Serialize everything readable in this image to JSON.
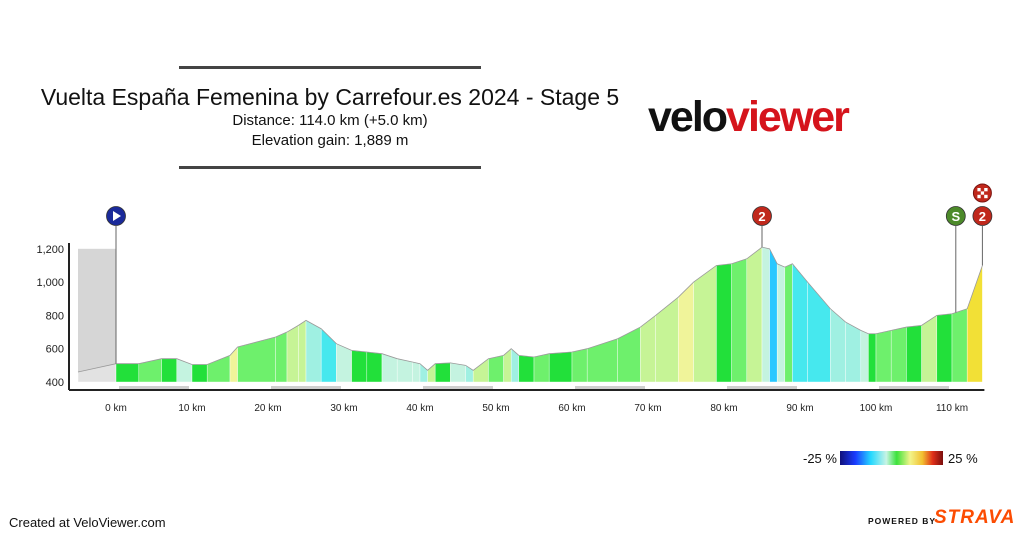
{
  "header": {
    "title": "Vuelta España Femenina by Carrefour.es 2024 - Stage 5",
    "distance": "Distance: 114.0 km (+5.0 km)",
    "elevation": "Elevation gain: 1,889 m"
  },
  "logo": {
    "part1": "velo",
    "part2": "viewer"
  },
  "legend": {
    "min_label": "-25 %",
    "max_label": "25 %"
  },
  "footer": {
    "credit": "Created at VeloViewer.com",
    "powered": "POWERED BY",
    "brand": "STRAVA"
  },
  "colors": {
    "brand_red": "#d5141c",
    "strava_orange": "#fc4c02",
    "start_marker": "#1a2a9a",
    "climb_marker": "#c0281c",
    "sprint_marker": "#4c8a2a"
  },
  "chart_data": {
    "type": "area",
    "title": "",
    "xlabel": "",
    "ylabel": "",
    "xlim": [
      -5,
      114
    ],
    "ylim": [
      400,
      1200
    ],
    "x_ticks": [
      0,
      10,
      20,
      30,
      40,
      50,
      60,
      70,
      80,
      90,
      100,
      110
    ],
    "x_tick_labels": [
      "0 km",
      "10 km",
      "20 km",
      "30 km",
      "40 km",
      "50 km",
      "60 km",
      "70 km",
      "80 km",
      "90 km",
      "100 km",
      "110 km"
    ],
    "y_ticks": [
      400,
      600,
      800,
      1000,
      1200
    ],
    "y_tick_labels": [
      "400",
      "600",
      "800",
      "1,000",
      "1,200"
    ],
    "neutral_zone_km": [
      -5,
      0
    ],
    "color_scale": {
      "min_pct": -25,
      "max_pct": 25
    },
    "profile": [
      {
        "x": -5,
        "y": 460
      },
      {
        "x": 0,
        "y": 510
      },
      {
        "x": 3,
        "y": 510
      },
      {
        "x": 6,
        "y": 540
      },
      {
        "x": 8,
        "y": 540
      },
      {
        "x": 10,
        "y": 505
      },
      {
        "x": 12,
        "y": 505
      },
      {
        "x": 15,
        "y": 560
      },
      {
        "x": 16,
        "y": 610
      },
      {
        "x": 21,
        "y": 670
      },
      {
        "x": 22.5,
        "y": 700
      },
      {
        "x": 24,
        "y": 740
      },
      {
        "x": 25,
        "y": 770
      },
      {
        "x": 27,
        "y": 720
      },
      {
        "x": 29,
        "y": 630
      },
      {
        "x": 31,
        "y": 590
      },
      {
        "x": 33,
        "y": 580
      },
      {
        "x": 35,
        "y": 570
      },
      {
        "x": 37,
        "y": 540
      },
      {
        "x": 39,
        "y": 520
      },
      {
        "x": 40,
        "y": 510
      },
      {
        "x": 41,
        "y": 470
      },
      {
        "x": 42,
        "y": 510
      },
      {
        "x": 44,
        "y": 515
      },
      {
        "x": 46,
        "y": 500
      },
      {
        "x": 47,
        "y": 470
      },
      {
        "x": 49,
        "y": 540
      },
      {
        "x": 51,
        "y": 560
      },
      {
        "x": 52,
        "y": 600
      },
      {
        "x": 53,
        "y": 560
      },
      {
        "x": 55,
        "y": 550
      },
      {
        "x": 57,
        "y": 570
      },
      {
        "x": 60,
        "y": 580
      },
      {
        "x": 62,
        "y": 600
      },
      {
        "x": 66,
        "y": 660
      },
      {
        "x": 69,
        "y": 730
      },
      {
        "x": 71,
        "y": 800
      },
      {
        "x": 74,
        "y": 910
      },
      {
        "x": 76,
        "y": 1000
      },
      {
        "x": 79,
        "y": 1100
      },
      {
        "x": 81,
        "y": 1110
      },
      {
        "x": 83,
        "y": 1140
      },
      {
        "x": 85,
        "y": 1210
      },
      {
        "x": 86,
        "y": 1200
      },
      {
        "x": 87,
        "y": 1110
      },
      {
        "x": 88,
        "y": 1090
      },
      {
        "x": 89,
        "y": 1110
      },
      {
        "x": 91,
        "y": 1000
      },
      {
        "x": 94,
        "y": 840
      },
      {
        "x": 96,
        "y": 760
      },
      {
        "x": 98,
        "y": 710
      },
      {
        "x": 99,
        "y": 690
      },
      {
        "x": 100,
        "y": 690
      },
      {
        "x": 102,
        "y": 710
      },
      {
        "x": 104,
        "y": 730
      },
      {
        "x": 106,
        "y": 740
      },
      {
        "x": 108,
        "y": 800
      },
      {
        "x": 110,
        "y": 810
      },
      {
        "x": 112,
        "y": 840
      },
      {
        "x": 114,
        "y": 1100
      }
    ],
    "markers": [
      {
        "km": 0,
        "type": "start",
        "icon": "play-icon",
        "label": ""
      },
      {
        "km": 85,
        "type": "climb",
        "icon": "climb-badge",
        "label": "2"
      },
      {
        "km": 110.5,
        "type": "sprint",
        "icon": "sprint-badge",
        "label": "S"
      },
      {
        "km": 114,
        "type": "finish-climb",
        "icon": "climb-badge",
        "label": "2"
      },
      {
        "km": 114,
        "type": "finish",
        "icon": "checkered-flag-icon",
        "label": ""
      }
    ]
  }
}
